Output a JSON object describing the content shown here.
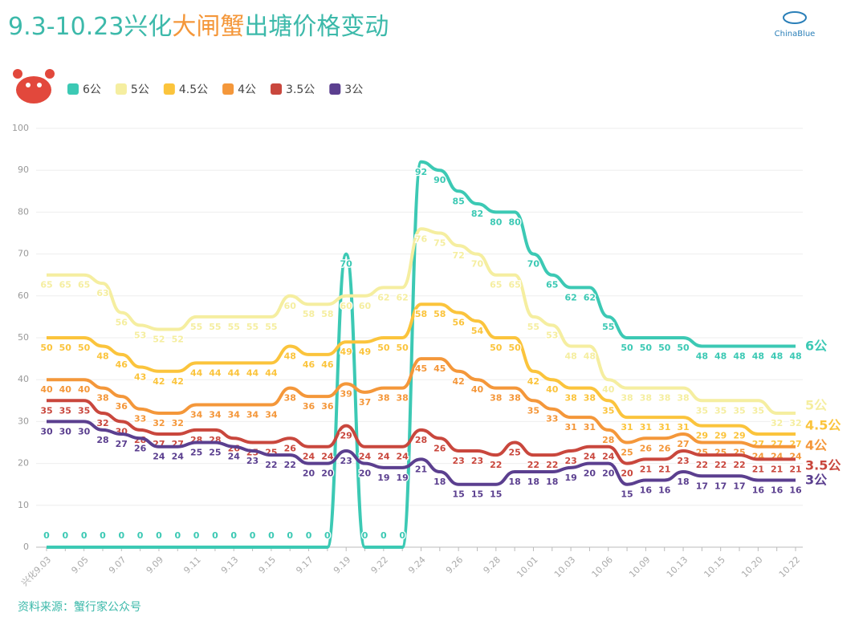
{
  "chart_data": {
    "type": "line",
    "title": [
      "9.3-10.23兴化",
      "大闸蟹",
      "出塘价格变动"
    ],
    "logo": "ChinaBlue",
    "source": "资料来源：蟹行家公众号",
    "categories": [
      "兴化9.03",
      null,
      "9.05",
      null,
      "9.07",
      null,
      "9.09",
      null,
      "9.11",
      null,
      "9.13",
      null,
      "9.15",
      null,
      "9.17",
      null,
      "9.19",
      null,
      "9.22",
      null,
      "9.24",
      null,
      "9.26",
      null,
      "9.28",
      null,
      "10.01",
      null,
      "10.03",
      null,
      "10.06",
      null,
      "10.09",
      null,
      "10.13",
      null,
      "10.15",
      null,
      "10.20",
      null,
      "10.22"
    ],
    "ylim": [
      0,
      100
    ],
    "yticks": [
      0,
      10,
      20,
      30,
      40,
      50,
      60,
      70,
      80,
      90,
      100
    ],
    "grid": true,
    "series": [
      {
        "name": "6公",
        "color": "#3cc9b4",
        "values": [
          0,
          0,
          0,
          0,
          0,
          0,
          0,
          0,
          0,
          0,
          0,
          0,
          0,
          0,
          0,
          0,
          70,
          0,
          0,
          0,
          92,
          90,
          85,
          82,
          80,
          80,
          70,
          65,
          62,
          62,
          55,
          50,
          50,
          50,
          50,
          48,
          48,
          48,
          48,
          48,
          48
        ]
      },
      {
        "name": "5公",
        "color": "#f5eea0",
        "values": [
          65,
          65,
          65,
          63,
          56,
          53,
          52,
          52,
          55,
          55,
          55,
          55,
          55,
          60,
          58,
          58,
          60,
          60,
          62,
          62,
          76,
          75,
          72,
          70,
          65,
          65,
          55,
          53,
          48,
          48,
          40,
          38,
          38,
          38,
          38,
          35,
          35,
          35,
          35,
          32,
          32
        ]
      },
      {
        "name": "4.5公",
        "color": "#fbc43c",
        "values": [
          50,
          50,
          50,
          48,
          46,
          43,
          42,
          42,
          44,
          44,
          44,
          44,
          44,
          48,
          46,
          46,
          49,
          49,
          50,
          50,
          58,
          58,
          56,
          54,
          50,
          50,
          42,
          40,
          38,
          38,
          35,
          31,
          31,
          31,
          31,
          29,
          29,
          29,
          27,
          27,
          27
        ]
      },
      {
        "name": "4公",
        "color": "#f4973a",
        "values": [
          40,
          40,
          40,
          38,
          36,
          33,
          32,
          32,
          34,
          34,
          34,
          34,
          34,
          38,
          36,
          36,
          39,
          37,
          38,
          38,
          45,
          45,
          42,
          40,
          38,
          38,
          35,
          33,
          31,
          31,
          28,
          25,
          26,
          26,
          27,
          25,
          25,
          25,
          24,
          24,
          24
        ]
      },
      {
        "name": "3.5公",
        "color": "#c9473d",
        "values": [
          35,
          35,
          35,
          32,
          30,
          28,
          27,
          27,
          28,
          28,
          26,
          25,
          25,
          26,
          24,
          24,
          29,
          24,
          24,
          24,
          28,
          26,
          23,
          23,
          22,
          25,
          22,
          22,
          23,
          24,
          24,
          20,
          21,
          21,
          23,
          22,
          22,
          22,
          21,
          21,
          21
        ]
      },
      {
        "name": "3公",
        "color": "#5b3f8f",
        "values": [
          30,
          30,
          30,
          28,
          27,
          26,
          24,
          24,
          25,
          25,
          24,
          23,
          22,
          22,
          20,
          20,
          23,
          20,
          19,
          19,
          21,
          18,
          15,
          15,
          15,
          18,
          18,
          18,
          19,
          20,
          20,
          15,
          16,
          16,
          18,
          17,
          17,
          17,
          16,
          16,
          16
        ]
      }
    ]
  }
}
